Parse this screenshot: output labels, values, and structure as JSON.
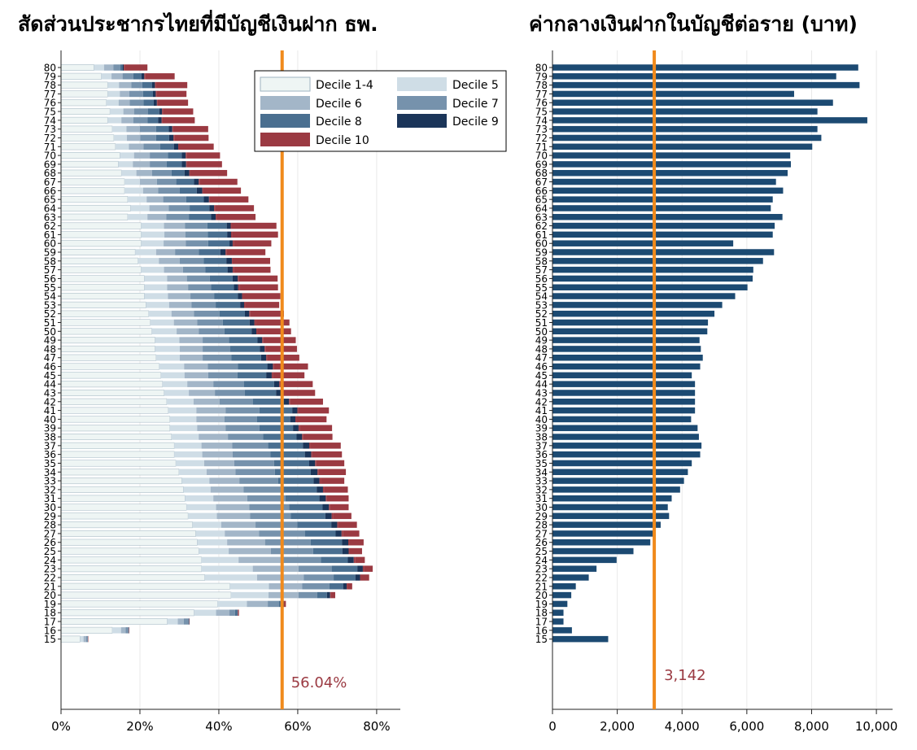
{
  "colors": {
    "decile_1_4": "#eef5f4",
    "decile_5": "#cfdde6",
    "decile_6": "#a3b6c8",
    "decile_7": "#7692ac",
    "decile_8": "#4a6f90",
    "decile_9": "#1b3559",
    "decile_10": "#9b3a42",
    "right_bar": "#1c4a72",
    "ref_line": "#f08a1c",
    "annotation": "#9b3a42",
    "axis": "#222222",
    "grid": "#e9e9e9"
  },
  "chart_data": [
    {
      "type": "bar",
      "stacked": true,
      "orientation": "horizontal",
      "title": "สัดส่วนประชากรไทยที่มีบัญชีเงินฝาก ธพ.",
      "categories": [
        "80",
        "79",
        "78",
        "77",
        "76",
        "75",
        "74",
        "73",
        "72",
        "71",
        "70",
        "69",
        "68",
        "67",
        "66",
        "65",
        "64",
        "63",
        "62",
        "61",
        "60",
        "59",
        "58",
        "57",
        "56",
        "55",
        "54",
        "53",
        "52",
        "51",
        "50",
        "49",
        "48",
        "47",
        "46",
        "45",
        "44",
        "43",
        "42",
        "41",
        "40",
        "39",
        "38",
        "37",
        "36",
        "35",
        "34",
        "33",
        "32",
        "31",
        "30",
        "29",
        "28",
        "27",
        "26",
        "25",
        "24",
        "23",
        "22",
        "21",
        "20",
        "19",
        "18",
        "17",
        "16",
        "15"
      ],
      "series": [
        {
          "name": "Decile 1-4",
          "values": [
            8.3,
            10.2,
            11.8,
            11.8,
            11.5,
            12.4,
            11.8,
            13,
            13.4,
            13.8,
            14.9,
            14.5,
            15.3,
            16.1,
            16.1,
            16.9,
            17.6,
            16.9,
            20.3,
            20.3,
            20.3,
            18.8,
            19.5,
            20.3,
            21.1,
            21.1,
            21.1,
            21.5,
            22.2,
            22.6,
            23,
            23.8,
            23.8,
            24.1,
            24.9,
            25.3,
            25.7,
            26.1,
            26.8,
            27.2,
            27.6,
            27.6,
            28,
            28.7,
            28.7,
            29.1,
            29.9,
            30.6,
            31,
            31.4,
            31.8,
            32.2,
            33.3,
            34.1,
            34.5,
            34.9,
            35.6,
            35.6,
            36.4,
            42.8,
            43.1,
            39.7,
            33.7,
            26.9,
            13,
            4.8
          ]
        },
        {
          "name": "Decile 5",
          "values": [
            2.6,
            2.6,
            2.9,
            3.1,
            3.1,
            3.4,
            3.5,
            3.6,
            3.3,
            3.4,
            3.6,
            3.7,
            3.8,
            3.9,
            4.7,
            4.8,
            4.8,
            5,
            5.8,
            5.9,
            5.7,
            5.3,
            5.3,
            5.8,
            5.8,
            5.8,
            6,
            5.9,
            5.8,
            6,
            6.3,
            6.2,
            6.3,
            6,
            6.3,
            6,
            6.3,
            6.3,
            6.8,
            7.1,
            6.7,
            6.9,
            6.9,
            6.9,
            7.1,
            7.2,
            7,
            7,
            6.9,
            7.2,
            7.5,
            7.3,
            7.3,
            7.4,
            7.6,
            7.6,
            9.4,
            13,
            13.3,
            9.9,
            9.5,
            7.4,
            5.6,
            2.7,
            2.2,
            0.9
          ]
        },
        {
          "name": "Decile 6",
          "values": [
            2.4,
            2.8,
            3.1,
            2.4,
            2.8,
            2.7,
            3,
            3.4,
            3.4,
            3.7,
            4,
            4.3,
            4,
            4.3,
            3.8,
            4.2,
            4.9,
            4.8,
            5.3,
            5.3,
            5.6,
            4.8,
            5.3,
            4.8,
            5,
            5.3,
            5.7,
            5.7,
            5.7,
            5.9,
            5.6,
            5.9,
            5.8,
            5.8,
            6,
            6,
            6.6,
            6.6,
            6.6,
            7.4,
            7.1,
            7.2,
            7.4,
            7.8,
            7.7,
            7.6,
            7.3,
            7.6,
            8.4,
            8.6,
            8.4,
            8.4,
            8.7,
            8.7,
            9.6,
            10.7,
            10.8,
            11.6,
            11.8,
            8.4,
            7.6,
            5.3,
            3.4,
            1.5,
            1.2,
            0.7
          ]
        },
        {
          "name": "Decile 7",
          "values": [
            1.7,
            2.7,
            2.8,
            3.5,
            3.5,
            3.5,
            3.6,
            4.1,
            4,
            4.2,
            4.6,
            4.3,
            4.9,
            4.9,
            5.5,
            5.8,
            5.3,
            5.7,
            5.7,
            5.7,
            5.7,
            6,
            6.1,
            5.7,
            5.8,
            5.8,
            6,
            6.1,
            6.5,
            6.5,
            6.5,
            6.7,
            7,
            7.3,
            7.6,
            7.4,
            7.8,
            7.6,
            8.4,
            8.6,
            8.3,
            8.6,
            8.9,
            9.1,
            9.6,
            10.1,
            10,
            9.8,
            10.1,
            9.7,
            10.1,
            10.3,
            10.6,
            11.6,
            11.6,
            10.7,
            10.1,
            8.4,
            7.6,
            6.9,
            4.7,
            2.8,
            1.4,
            1.2,
            0.7,
            0.4
          ]
        },
        {
          "name": "Decile 8",
          "values": [
            0.6,
            2.1,
            2.5,
            2.5,
            2.6,
            2.9,
            2.7,
            3.2,
            3.3,
            3.5,
            3.5,
            3.8,
            3.3,
            4.5,
            4.3,
            4.5,
            5,
            5.6,
            4.9,
            4.9,
            5.4,
            5.5,
            5.7,
            5.6,
            5.8,
            5.8,
            6,
            6.2,
            6.4,
            6.8,
            6.9,
            7.2,
            7.5,
            7.5,
            7.5,
            7.3,
            7.6,
            7.9,
            7.9,
            8.3,
            8.4,
            8.5,
            8.5,
            8.8,
            8.7,
            8.9,
            9.1,
            9,
            8.4,
            8.6,
            8.5,
            8.8,
            8.6,
            7.8,
            7.9,
            7.4,
            6.8,
            6.5,
            5.5,
            3.5,
            2.5,
            1,
            0.6,
            0.2,
            0.1,
            0
          ]
        },
        {
          "name": "Decile 9",
          "values": [
            0.3,
            0.7,
            0.7,
            0.7,
            0.8,
            0.7,
            0.9,
            0.9,
            1.1,
            1.1,
            1,
            1.1,
            1.2,
            1.2,
            1.4,
            1.3,
            1.2,
            1.2,
            1,
            1,
            0.8,
            1.3,
            1.4,
            1.3,
            1.3,
            1.1,
            1.1,
            1,
            1.1,
            1.2,
            1.2,
            1.2,
            1.2,
            1.3,
            1.4,
            1.4,
            1.3,
            1.4,
            1.3,
            1.3,
            1.3,
            1.4,
            1.4,
            1.6,
            1.6,
            1.5,
            1.7,
            1.5,
            1.6,
            1.6,
            1.6,
            1.6,
            1.5,
            1.5,
            1.6,
            1.6,
            1.5,
            1.4,
            1.2,
            0.9,
            0.8,
            0.3,
            0.1,
            0,
            0,
            0
          ]
        },
        {
          "name": "Decile 10",
          "values": [
            0.2,
            0.2,
            0.2,
            0.2,
            0.2,
            0.2,
            0.2,
            0.2,
            0.2,
            0.2,
            0.2,
            0.2,
            0.2,
            0.2,
            0.2,
            0.2,
            0.2,
            0.2,
            0.3,
            0.3,
            0.3,
            0.3,
            0.2,
            0.3,
            0.3,
            0.3,
            0.3,
            0.3,
            0.2,
            0.3,
            0.3,
            0.3,
            0.3,
            0.3,
            0.3,
            0.3,
            0.3,
            0.3,
            0.3,
            0.3,
            0.3,
            0.3,
            0.3,
            0.3,
            0.3,
            0.3,
            0.3,
            0.3,
            0.3,
            0.3,
            0.3,
            0.3,
            0.3,
            0.3,
            0.3,
            0.3,
            0.3,
            0.3,
            0.3,
            0.2,
            0.2,
            0.1,
            0.1,
            0,
            0,
            0
          ]
        },
        {
          "name": "_endcap",
          "values": [
            5.8,
            7.5,
            8,
            7.6,
            7.7,
            7.7,
            8.2,
            8.9,
            8.7,
            8.8,
            8.5,
            8.9,
            9.4,
            9.6,
            9.6,
            9.8,
            9.9,
            9.9,
            11.3,
            11.6,
            9.5,
            9.8,
            9.5,
            9.3,
            9.8,
            9.8,
            9.4,
            8.6,
            8.6,
            8.6,
            8.5,
            8.2,
            7.9,
            8.1,
            8.6,
            8,
            8.2,
            8.2,
            8.3,
            7.7,
            7.6,
            8.2,
            7.4,
            7.7,
            7.5,
            7.1,
            6.9,
            6,
            6,
            5.5,
            4.7,
            4.7,
            4.7,
            4.2,
            3.6,
            3.1,
            2.5,
            2.2,
            2,
            1.2,
            1.1,
            0.4,
            0.2,
            0.1,
            0.1,
            0.1
          ]
        }
      ],
      "xlim": [
        0,
        86
      ],
      "xticks": [
        "0%",
        "20%",
        "40%",
        "60%",
        "80%"
      ],
      "xtick_values": [
        0,
        20,
        40,
        60,
        80
      ],
      "legend": [
        "Decile 1-4",
        "Decile 5",
        "Decile 6",
        "Decile 7",
        "Decile 8",
        "Decile 9",
        "Decile 10"
      ],
      "legend_position": "top-right",
      "reference_line": 56.04,
      "annotation": "56.04%",
      "grid": true
    },
    {
      "type": "bar",
      "orientation": "horizontal",
      "title": "ค่ากลางเงินฝากในบัญชีต่อราย (บาท)",
      "categories": [
        "80",
        "79",
        "78",
        "77",
        "76",
        "75",
        "74",
        "73",
        "72",
        "71",
        "70",
        "69",
        "68",
        "67",
        "66",
        "65",
        "64",
        "63",
        "62",
        "61",
        "60",
        "59",
        "58",
        "57",
        "56",
        "55",
        "54",
        "53",
        "52",
        "51",
        "50",
        "49",
        "48",
        "47",
        "46",
        "45",
        "44",
        "43",
        "42",
        "41",
        "40",
        "39",
        "38",
        "37",
        "36",
        "35",
        "34",
        "33",
        "32",
        "31",
        "30",
        "29",
        "28",
        "27",
        "26",
        "25",
        "24",
        "23",
        "22",
        "21",
        "20",
        "19",
        "18",
        "17",
        "16",
        "15"
      ],
      "values": [
        9440,
        8760,
        9480,
        7460,
        8660,
        8180,
        9720,
        8180,
        8300,
        8020,
        7340,
        7360,
        7260,
        6900,
        7120,
        6800,
        6740,
        7100,
        6860,
        6800,
        5580,
        6840,
        6500,
        6200,
        6180,
        6020,
        5640,
        5240,
        5000,
        4800,
        4780,
        4540,
        4580,
        4640,
        4560,
        4300,
        4400,
        4400,
        4400,
        4400,
        4280,
        4480,
        4520,
        4600,
        4560,
        4300,
        4180,
        4060,
        3940,
        3680,
        3560,
        3600,
        3340,
        3160,
        3020,
        2500,
        1980,
        1360,
        1120,
        720,
        580,
        460,
        340,
        340,
        600,
        1720
      ],
      "xlim": [
        0,
        10500
      ],
      "xticks": [
        "0",
        "2,000",
        "4,000",
        "6,000",
        "8,000",
        "10,000"
      ],
      "xtick_values": [
        0,
        2000,
        4000,
        6000,
        8000,
        10000
      ],
      "reference_line": 3142,
      "annotation": "3,142",
      "grid": true
    }
  ]
}
